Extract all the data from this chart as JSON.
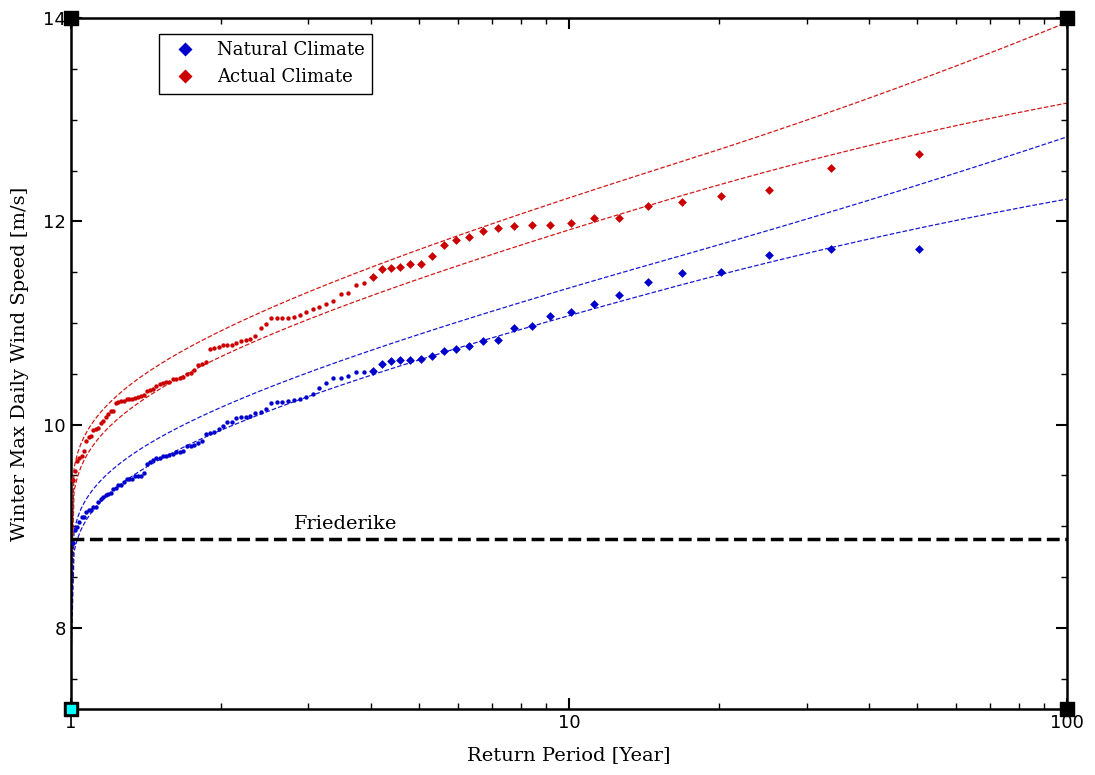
{
  "xlim": [
    1,
    100
  ],
  "ylim": [
    7.2,
    14.0
  ],
  "xlabel": "Return Period [Year]",
  "ylabel": "Winter Max Daily Wind Speed [m/s]",
  "friederike_level": 8.87,
  "friederike_label": "Friederike",
  "natural_color": "#0000CC",
  "actual_color": "#CC0000",
  "natural_label": "Natural Climate",
  "actual_label": "Actual Climate",
  "background_color": "#FFFFFF",
  "axis_fontsize": 14,
  "tick_fontsize": 13,
  "legend_fontsize": 13,
  "corner_color": "#000000",
  "cyan_color": "#00FFFF",
  "n_ensemble": 100
}
